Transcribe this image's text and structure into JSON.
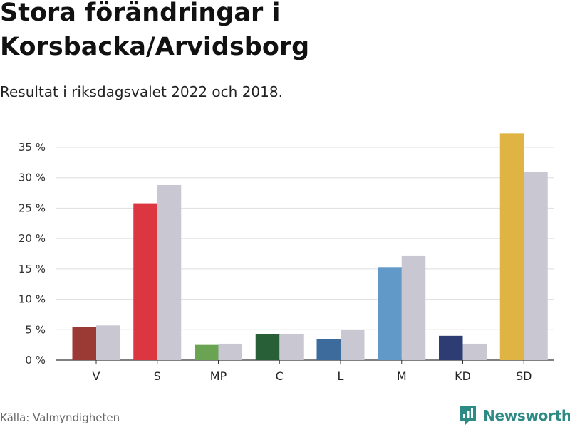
{
  "chart_data": {
    "type": "bar",
    "title": "Stora förändringar i Korsbacka/Arvidsborg",
    "subtitle": "Resultat i riksdagsvalet 2022 och 2018.",
    "categories": [
      "V",
      "S",
      "MP",
      "C",
      "L",
      "M",
      "KD",
      "SD"
    ],
    "series": [
      {
        "name": "2022",
        "values": [
          5.4,
          25.8,
          2.5,
          4.3,
          3.5,
          15.3,
          4.0,
          37.3
        ],
        "colors": [
          "#9b3935",
          "#dc3641",
          "#6aa351",
          "#285f37",
          "#3d6b9b",
          "#6199c8",
          "#2d3d74",
          "#dfb443"
        ]
      },
      {
        "name": "2018",
        "values": [
          5.7,
          28.8,
          2.7,
          4.3,
          5.0,
          17.1,
          2.7,
          30.9
        ],
        "color": "#c8c7d2"
      }
    ],
    "ylim": [
      0,
      35
    ],
    "yticks": [
      0,
      5,
      10,
      15,
      20,
      25,
      30,
      35
    ],
    "ytick_labels": [
      "0 %",
      "5 %",
      "10 %",
      "15 %",
      "20 %",
      "25 %",
      "30 %",
      "35 %"
    ],
    "grid": true,
    "xlabel": "",
    "ylabel": ""
  },
  "source": "Källa: Valmyndigheten",
  "logo": {
    "text": "Newsworthy",
    "color": "#2d8a84"
  }
}
